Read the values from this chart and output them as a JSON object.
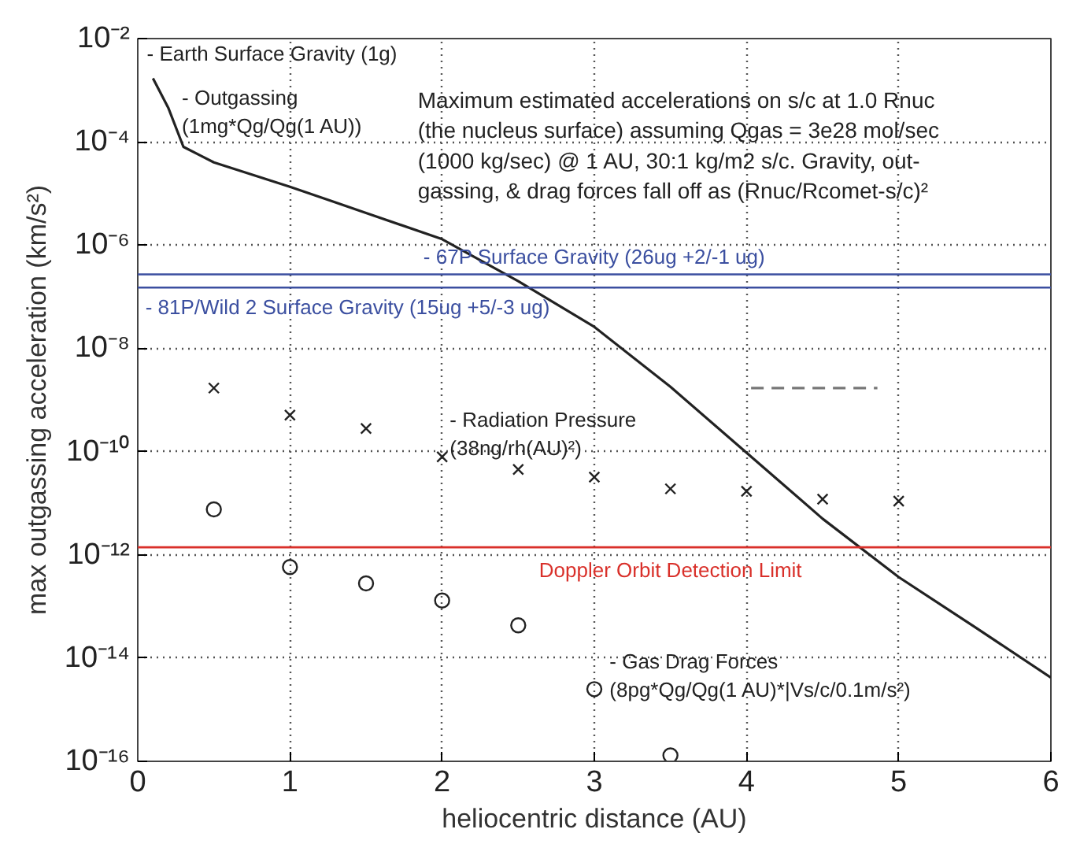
{
  "chart_data": {
    "type": "line",
    "xlabel": "heliocentric distance (AU)",
    "ylabel": "max outgassing acceleration (km/s²)",
    "log": "y",
    "xlim": [
      0,
      6
    ],
    "xticks": [
      0,
      1,
      2,
      3,
      4,
      5,
      6
    ],
    "ylim": [
      1e-16,
      0.01
    ],
    "yticks": [
      {
        "value": 0.01,
        "label": "10⁻²"
      },
      {
        "value": 0.0001,
        "label": "10⁻⁴"
      },
      {
        "value": 1e-06,
        "label": "10⁻⁶"
      },
      {
        "value": 1e-08,
        "label": "10⁻⁸"
      },
      {
        "value": 1e-10,
        "label": "10⁻¹⁰"
      },
      {
        "value": 1e-12,
        "label": "10⁻¹²"
      },
      {
        "value": 1e-14,
        "label": "10⁻¹⁴"
      },
      {
        "value": 1e-16,
        "label": "10⁻¹⁶"
      }
    ],
    "grid": true,
    "series": [
      {
        "color": "#222222",
        "line_style": "solid",
        "marker": "none",
        "x": [
          0.1,
          0.2,
          0.3,
          0.5,
          1,
          1.5,
          2,
          2.5,
          3,
          3.5,
          4,
          4.5,
          5,
          5.5,
          6
        ],
        "values": [
          0.0017,
          0.00046,
          8e-05,
          4e-05,
          1.35e-05,
          4.2e-06,
          1.3e-06,
          2e-07,
          2.6e-08,
          1.8e-09,
          9.5e-11,
          5e-12,
          3.7e-13,
          4e-14,
          4.2e-15
        ]
      },
      {
        "type": "scatter",
        "color": "#222222",
        "marker": "cross",
        "x": [
          0.5,
          1,
          1.5,
          2,
          2.5,
          3,
          3.5,
          4,
          4.5,
          5
        ],
        "values": [
          1.7e-09,
          5.1e-10,
          2.8e-10,
          7.9e-11,
          4.5e-11,
          3.2e-11,
          1.9e-11,
          1.7e-11,
          1.2e-11,
          1.1e-11
        ]
      },
      {
        "type": "scatter",
        "color": "#222222",
        "marker": "circle",
        "x": [
          0.5,
          1,
          1.5,
          2,
          2.5,
          3,
          3.5
        ],
        "values": [
          7.6e-12,
          5.8e-13,
          2.8e-13,
          1.3e-13,
          4.3e-14,
          2.5e-15,
          1.3e-16
        ]
      },
      {
        "color": "#777777",
        "line_style": "dashed",
        "marker": "none",
        "x": [
          4.03,
          4.86
        ],
        "values": [
          1.7e-09,
          1.7e-09
        ]
      }
    ],
    "ref_lines": [
      {
        "axis": "y",
        "value": 2.7e-07,
        "label": "- 67P Surface Gravity (26ug +2/-1 ug)",
        "color": "#3b4fa0"
      },
      {
        "axis": "y",
        "value": 1.5e-07,
        "label": "- 81P/Wild 2 Surface Gravity (15ug +5/-3 ug)",
        "color": "#3b4fa0"
      },
      {
        "axis": "y",
        "value": 1.4e-12,
        "label": "Doppler Orbit Detection Limit",
        "color": "#d9302a"
      }
    ],
    "annotations": [
      "- Earth Surface Gravity (1g)",
      "- Outgassing\n(1mg*Qg/Qg(1 AU))",
      "- Radiation Pressure\n(38ng/rh(AU)²)",
      "- Gas Drag Forces\n(8pg*Qg/Qg(1 AU)*|Vs/c/0.1m/s²)",
      "Maximum estimated accelerations on s/c at 1.0 Rnuc (the nucleus surface) assuming Qgas = 3e28 mol/sec (1000 kg/sec) @ 1 AU, 30:1 kg/m2 s/c.  Gravity, out-gassing, & drag forces fall off as (Rnuc/Rcomet-s/c)²"
    ]
  }
}
